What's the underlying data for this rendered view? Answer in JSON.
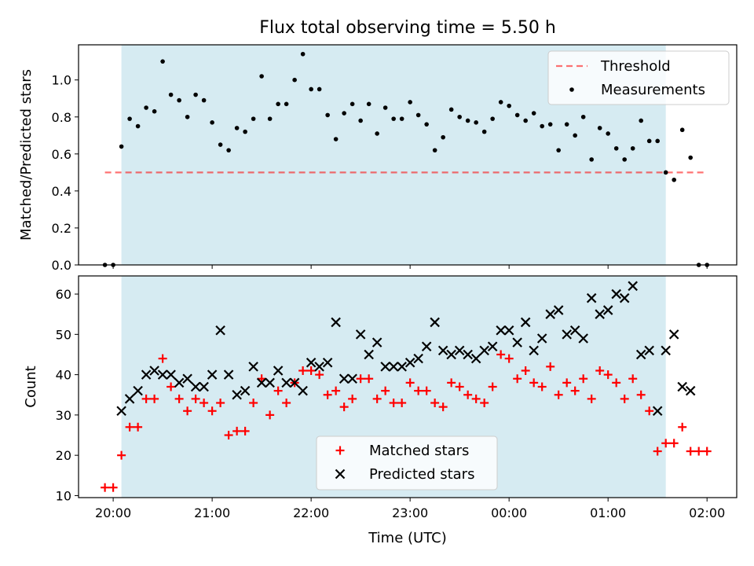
{
  "title": "Flux total observing time = 5.50 h",
  "colors": {
    "band": "#add8e6",
    "threshold": "#ff0000",
    "measurement": "#000000",
    "matched": "#ff0000",
    "predicted": "#000000"
  },
  "chart_data": [
    {
      "type": "scatter",
      "ylabel": "Matched/Predicted stars",
      "ylim": [
        0,
        1.19
      ],
      "xlim": [
        "19:39",
        "02:18"
      ],
      "yticks": [
        0.0,
        0.2,
        0.4,
        0.6,
        0.8,
        1.0
      ],
      "ytick_labels": [
        "0.0",
        "0.2",
        "0.4",
        "0.6",
        "0.8",
        "1.0"
      ],
      "shaded_region": [
        "20:05",
        "01:35"
      ],
      "threshold": {
        "name": "Threshold",
        "value": 0.5,
        "x": [
          "19:55",
          "01:58"
        ]
      },
      "legend": [
        "Threshold",
        "Measurements"
      ],
      "legend_position": "upper right",
      "series": [
        {
          "name": "Measurements",
          "x": [
            "19:55",
            "20:00",
            "20:05",
            "20:10",
            "20:15",
            "20:20",
            "20:25",
            "20:30",
            "20:35",
            "20:40",
            "20:45",
            "20:50",
            "20:55",
            "21:00",
            "21:05",
            "21:10",
            "21:15",
            "21:20",
            "21:25",
            "21:30",
            "21:35",
            "21:40",
            "21:45",
            "21:50",
            "21:55",
            "22:00",
            "22:05",
            "22:10",
            "22:15",
            "22:20",
            "22:25",
            "22:30",
            "22:35",
            "22:40",
            "22:45",
            "22:50",
            "22:55",
            "23:00",
            "23:05",
            "23:10",
            "23:15",
            "23:20",
            "23:25",
            "23:30",
            "23:35",
            "23:40",
            "23:45",
            "23:50",
            "23:55",
            "00:00",
            "00:05",
            "00:10",
            "00:15",
            "00:20",
            "00:25",
            "00:30",
            "00:35",
            "00:40",
            "00:45",
            "00:50",
            "00:55",
            "01:00",
            "01:05",
            "01:10",
            "01:15",
            "01:20",
            "01:25",
            "01:30",
            "01:35",
            "01:40",
            "01:45",
            "01:50",
            "01:55",
            "02:00"
          ],
          "values": [
            0.0,
            0.0,
            0.64,
            0.79,
            0.75,
            0.85,
            0.83,
            1.1,
            0.92,
            0.89,
            0.8,
            0.92,
            0.89,
            0.77,
            0.65,
            0.62,
            0.74,
            0.72,
            0.79,
            1.02,
            0.79,
            0.87,
            0.87,
            1.0,
            1.14,
            0.95,
            0.95,
            0.81,
            0.68,
            0.82,
            0.87,
            0.78,
            0.87,
            0.71,
            0.85,
            0.79,
            0.79,
            0.88,
            0.81,
            0.76,
            0.62,
            0.69,
            0.84,
            0.8,
            0.78,
            0.77,
            0.72,
            0.79,
            0.88,
            0.86,
            0.81,
            0.78,
            0.82,
            0.75,
            0.76,
            0.62,
            0.76,
            0.7,
            0.8,
            0.57,
            0.74,
            0.71,
            0.63,
            0.57,
            0.63,
            0.78,
            0.67,
            0.67,
            0.5,
            0.46,
            0.73,
            0.58,
            0.0,
            0.0
          ]
        }
      ]
    },
    {
      "type": "scatter",
      "ylabel": "Count",
      "xlabel": "Time (UTC)",
      "ylim": [
        9.5,
        64.5
      ],
      "xlim": [
        "19:39",
        "02:18"
      ],
      "yticks": [
        10,
        20,
        30,
        40,
        50,
        60
      ],
      "ytick_labels": [
        "10",
        "20",
        "30",
        "40",
        "50",
        "60"
      ],
      "xticks": [
        "20:00",
        "21:00",
        "22:00",
        "23:00",
        "00:00",
        "01:00",
        "02:00"
      ],
      "xtick_labels": [
        "20:00",
        "21:00",
        "22:00",
        "23:00",
        "00:00",
        "01:00",
        "02:00"
      ],
      "shaded_region": [
        "20:05",
        "01:35"
      ],
      "legend": [
        "Matched stars",
        "Predicted stars"
      ],
      "legend_position": "lower center",
      "series": [
        {
          "name": "Matched stars",
          "marker": "plus",
          "x": [
            "19:55",
            "20:00",
            "20:05",
            "20:10",
            "20:15",
            "20:20",
            "20:25",
            "20:30",
            "20:35",
            "20:40",
            "20:45",
            "20:50",
            "20:55",
            "21:00",
            "21:05",
            "21:10",
            "21:15",
            "21:20",
            "21:25",
            "21:30",
            "21:35",
            "21:40",
            "21:45",
            "21:50",
            "21:55",
            "22:00",
            "22:05",
            "22:10",
            "22:15",
            "22:20",
            "22:25",
            "22:30",
            "22:35",
            "22:40",
            "22:45",
            "22:50",
            "22:55",
            "23:00",
            "23:05",
            "23:10",
            "23:15",
            "23:20",
            "23:25",
            "23:30",
            "23:35",
            "23:40",
            "23:45",
            "23:50",
            "23:55",
            "00:00",
            "00:05",
            "00:10",
            "00:15",
            "00:20",
            "00:25",
            "00:30",
            "00:35",
            "00:40",
            "00:45",
            "00:50",
            "00:55",
            "01:00",
            "01:05",
            "01:10",
            "01:15",
            "01:20",
            "01:25",
            "01:30",
            "01:35",
            "01:40",
            "01:45",
            "01:50",
            "01:55",
            "02:00"
          ],
          "values": [
            12,
            12,
            20,
            27,
            27,
            34,
            34,
            44,
            37,
            34,
            31,
            34,
            33,
            31,
            33,
            25,
            26,
            26,
            33,
            39,
            30,
            36,
            33,
            38,
            41,
            41,
            40,
            35,
            36,
            32,
            34,
            39,
            39,
            34,
            36,
            33,
            33,
            38,
            36,
            36,
            33,
            32,
            38,
            37,
            35,
            34,
            33,
            37,
            45,
            44,
            39,
            41,
            38,
            37,
            42,
            35,
            38,
            36,
            39,
            34,
            41,
            40,
            38,
            34,
            39,
            35,
            31,
            21,
            23,
            23,
            27,
            21,
            21,
            21
          ]
        },
        {
          "name": "Predicted stars",
          "marker": "x",
          "x": [
            "20:05",
            "20:10",
            "20:15",
            "20:20",
            "20:25",
            "20:30",
            "20:35",
            "20:40",
            "20:45",
            "20:50",
            "20:55",
            "21:00",
            "21:05",
            "21:10",
            "21:15",
            "21:20",
            "21:25",
            "21:30",
            "21:35",
            "21:40",
            "21:45",
            "21:50",
            "21:55",
            "22:00",
            "22:05",
            "22:10",
            "22:15",
            "22:20",
            "22:25",
            "22:30",
            "22:35",
            "22:40",
            "22:45",
            "22:50",
            "22:55",
            "23:00",
            "23:05",
            "23:10",
            "23:15",
            "23:20",
            "23:25",
            "23:30",
            "23:35",
            "23:40",
            "23:45",
            "23:50",
            "23:55",
            "00:00",
            "00:05",
            "00:10",
            "00:15",
            "00:20",
            "00:25",
            "00:30",
            "00:35",
            "00:40",
            "00:45",
            "00:50",
            "00:55",
            "01:00",
            "01:05",
            "01:10",
            "01:15",
            "01:20",
            "01:25",
            "01:30",
            "01:35",
            "01:40",
            "01:45",
            "01:50"
          ],
          "values": [
            31,
            34,
            36,
            40,
            41,
            40,
            40,
            38,
            39,
            37,
            37,
            40,
            51,
            40,
            35,
            36,
            42,
            38,
            38,
            41,
            38,
            38,
            36,
            43,
            42,
            43,
            53,
            39,
            39,
            50,
            45,
            48,
            42,
            42,
            42,
            43,
            44,
            47,
            53,
            46,
            45,
            46,
            45,
            44,
            46,
            47,
            51,
            51,
            48,
            53,
            46,
            49,
            55,
            56,
            50,
            51,
            49,
            59,
            55,
            56,
            60,
            59,
            62,
            45,
            46,
            31,
            46,
            50,
            37,
            36
          ]
        }
      ]
    }
  ]
}
